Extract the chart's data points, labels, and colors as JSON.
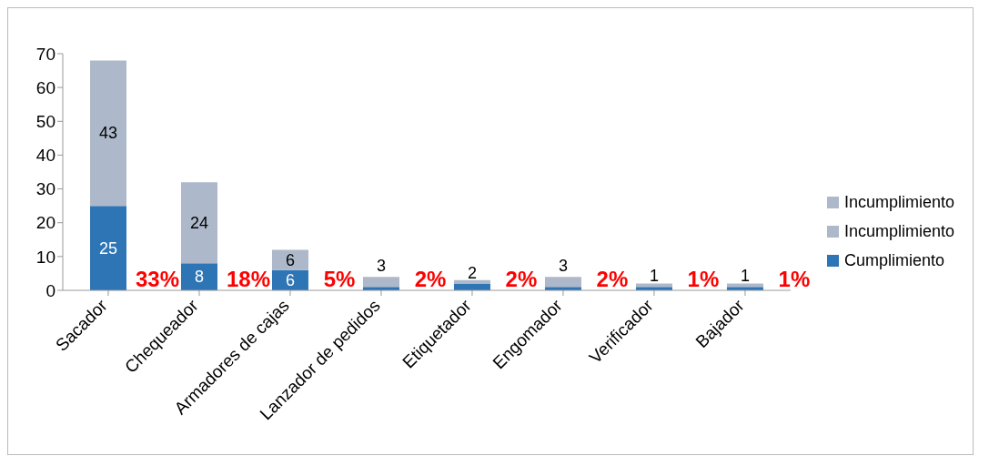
{
  "chart_data": {
    "type": "bar",
    "stacked": true,
    "categories": [
      "Sacador",
      "Chequeador",
      "Armadores de cajas",
      "Lanzador de pedidos",
      "Etiquetador",
      "Engomador",
      "Verificador",
      "Bajador"
    ],
    "series": [
      {
        "name": "Cumplimiento",
        "color": "#2e75b6",
        "values": [
          25,
          8,
          6,
          1,
          2,
          1,
          1,
          1
        ],
        "value_labels": [
          "25",
          "8",
          "6",
          null,
          "2",
          null,
          "1",
          "1"
        ]
      },
      {
        "name": "Incumplimiento",
        "color": "#adb9ca",
        "values": [
          43,
          24,
          6,
          3,
          1,
          3,
          1,
          1
        ],
        "value_labels": [
          "43",
          "24",
          "6",
          "3",
          null,
          "3",
          null,
          null
        ]
      },
      {
        "name": "Incumplimiento",
        "color": "#adb9ca",
        "values": [
          null,
          null,
          null,
          null,
          null,
          null,
          null,
          null
        ],
        "value_labels": [
          "33%",
          "18%",
          "5%",
          "2%",
          "2%",
          "2%",
          "1%",
          "1%"
        ]
      }
    ],
    "ylim": [
      0,
      70
    ],
    "yticks": [
      0,
      10,
      20,
      30,
      40,
      50,
      60,
      70
    ],
    "grid": false,
    "legend": "right"
  }
}
